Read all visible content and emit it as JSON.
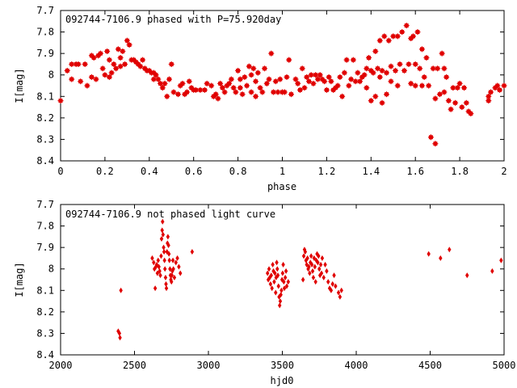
{
  "chart_data": [
    {
      "type": "scatter",
      "title": "092744-7106.9 phased with P=75.920day",
      "xlabel": "phase",
      "ylabel": "I[mag]",
      "xlim": [
        0,
        2
      ],
      "ylim": [
        7.7,
        8.4
      ],
      "y_inverted": true,
      "xticks": [
        "0",
        "0.2",
        "0.4",
        "0.6",
        "0.8",
        "1",
        "1.2",
        "1.4",
        "1.6",
        "1.8",
        "2"
      ],
      "yticks": [
        "7.7",
        "7.8",
        "7.9",
        "8",
        "8.1",
        "8.2",
        "8.3",
        "8.4"
      ],
      "marker": "star",
      "color": "#e00000",
      "points": [
        [
          0.0,
          8.12
        ],
        [
          0.03,
          7.98
        ],
        [
          0.05,
          7.95
        ],
        [
          0.05,
          8.02
        ],
        [
          0.07,
          7.95
        ],
        [
          0.08,
          7.95
        ],
        [
          0.09,
          8.03
        ],
        [
          0.11,
          7.95
        ],
        [
          0.12,
          8.05
        ],
        [
          0.14,
          7.91
        ],
        [
          0.14,
          8.01
        ],
        [
          0.15,
          7.92
        ],
        [
          0.16,
          8.02
        ],
        [
          0.17,
          7.91
        ],
        [
          0.18,
          7.9
        ],
        [
          0.19,
          7.97
        ],
        [
          0.2,
          8.0
        ],
        [
          0.21,
          7.89
        ],
        [
          0.22,
          7.93
        ],
        [
          0.22,
          8.01
        ],
        [
          0.23,
          7.99
        ],
        [
          0.24,
          7.95
        ],
        [
          0.25,
          7.97
        ],
        [
          0.26,
          7.88
        ],
        [
          0.27,
          7.96
        ],
        [
          0.27,
          7.92
        ],
        [
          0.28,
          7.89
        ],
        [
          0.29,
          7.95
        ],
        [
          0.3,
          7.84
        ],
        [
          0.31,
          7.86
        ],
        [
          0.32,
          7.93
        ],
        [
          0.33,
          7.93
        ],
        [
          0.34,
          7.94
        ],
        [
          0.35,
          7.95
        ],
        [
          0.36,
          7.96
        ],
        [
          0.37,
          7.93
        ],
        [
          0.38,
          7.97
        ],
        [
          0.39,
          7.98
        ],
        [
          0.4,
          7.98
        ],
        [
          0.41,
          7.99
        ],
        [
          0.42,
          7.99
        ],
        [
          0.42,
          8.02
        ],
        [
          0.43,
          8.0
        ],
        [
          0.44,
          8.02
        ],
        [
          0.45,
          8.04
        ],
        [
          0.46,
          8.06
        ],
        [
          0.47,
          8.04
        ],
        [
          0.48,
          8.1
        ],
        [
          0.49,
          8.02
        ],
        [
          0.5,
          7.95
        ],
        [
          0.51,
          8.08
        ],
        [
          0.53,
          8.09
        ],
        [
          0.54,
          8.05
        ],
        [
          0.55,
          8.04
        ],
        [
          0.56,
          8.09
        ],
        [
          0.57,
          8.08
        ],
        [
          0.58,
          8.03
        ],
        [
          0.59,
          8.06
        ],
        [
          0.6,
          8.07
        ],
        [
          0.61,
          8.07
        ],
        [
          0.63,
          8.07
        ],
        [
          0.65,
          8.07
        ],
        [
          0.66,
          8.04
        ],
        [
          0.68,
          8.05
        ],
        [
          0.69,
          8.1
        ],
        [
          0.7,
          8.09
        ],
        [
          0.71,
          8.11
        ],
        [
          0.72,
          8.04
        ],
        [
          0.73,
          8.06
        ],
        [
          0.74,
          8.08
        ],
        [
          0.75,
          8.05
        ],
        [
          0.76,
          8.04
        ],
        [
          0.77,
          8.02
        ],
        [
          0.78,
          8.06
        ],
        [
          0.79,
          8.08
        ],
        [
          0.8,
          7.98
        ],
        [
          0.81,
          8.06
        ],
        [
          0.81,
          8.02
        ],
        [
          0.82,
          8.09
        ],
        [
          0.83,
          8.01
        ],
        [
          0.84,
          8.05
        ],
        [
          0.85,
          7.96
        ],
        [
          0.86,
          8.0
        ],
        [
          0.86,
          8.08
        ],
        [
          0.87,
          7.97
        ],
        [
          0.88,
          8.03
        ],
        [
          0.88,
          8.1
        ],
        [
          0.89,
          7.99
        ],
        [
          0.9,
          8.06
        ],
        [
          0.91,
          8.08
        ],
        [
          0.92,
          7.97
        ],
        [
          0.93,
          8.04
        ],
        [
          0.94,
          8.02
        ],
        [
          0.95,
          7.9
        ],
        [
          0.96,
          8.08
        ],
        [
          0.97,
          8.03
        ],
        [
          0.98,
          8.08
        ],
        [
          0.99,
          8.02
        ],
        [
          1.0,
          8.08
        ],
        [
          1.01,
          8.08
        ],
        [
          1.02,
          8.01
        ],
        [
          1.03,
          7.93
        ],
        [
          1.04,
          8.09
        ],
        [
          1.06,
          8.02
        ],
        [
          1.07,
          8.04
        ],
        [
          1.08,
          8.07
        ],
        [
          1.09,
          7.97
        ],
        [
          1.1,
          8.06
        ],
        [
          1.11,
          8.01
        ],
        [
          1.12,
          8.03
        ],
        [
          1.13,
          8.0
        ],
        [
          1.14,
          8.04
        ],
        [
          1.15,
          8.0
        ],
        [
          1.16,
          8.02
        ],
        [
          1.17,
          8.0
        ],
        [
          1.18,
          8.02
        ],
        [
          1.19,
          8.03
        ],
        [
          1.2,
          8.07
        ],
        [
          1.21,
          8.01
        ],
        [
          1.22,
          8.03
        ],
        [
          1.23,
          8.07
        ],
        [
          1.24,
          8.06
        ],
        [
          1.25,
          8.05
        ],
        [
          1.26,
          8.01
        ],
        [
          1.27,
          8.1
        ],
        [
          1.28,
          7.99
        ],
        [
          1.29,
          7.93
        ],
        [
          1.3,
          8.05
        ],
        [
          1.31,
          8.02
        ],
        [
          1.32,
          7.93
        ],
        [
          1.33,
          8.03
        ],
        [
          1.34,
          7.99
        ],
        [
          1.35,
          8.03
        ],
        [
          1.36,
          8.01
        ],
        [
          1.37,
          8.0
        ],
        [
          1.38,
          7.97
        ],
        [
          1.38,
          8.06
        ],
        [
          1.39,
          7.92
        ],
        [
          1.4,
          7.98
        ],
        [
          1.4,
          8.12
        ],
        [
          1.41,
          7.99
        ],
        [
          1.42,
          7.89
        ],
        [
          1.42,
          8.1
        ],
        [
          1.43,
          7.97
        ],
        [
          1.44,
          7.84
        ],
        [
          1.44,
          8.01
        ],
        [
          1.45,
          7.98
        ],
        [
          1.45,
          8.13
        ],
        [
          1.46,
          7.82
        ],
        [
          1.47,
          7.99
        ],
        [
          1.47,
          8.09
        ],
        [
          1.48,
          7.84
        ],
        [
          1.49,
          7.96
        ],
        [
          1.49,
          8.03
        ],
        [
          1.5,
          7.82
        ],
        [
          1.51,
          7.98
        ],
        [
          1.52,
          7.82
        ],
        [
          1.52,
          8.05
        ],
        [
          1.53,
          7.95
        ],
        [
          1.54,
          7.8
        ],
        [
          1.55,
          7.98
        ],
        [
          1.56,
          7.77
        ],
        [
          1.57,
          7.95
        ],
        [
          1.58,
          7.83
        ],
        [
          1.58,
          8.04
        ],
        [
          1.59,
          7.82
        ],
        [
          1.6,
          7.95
        ],
        [
          1.6,
          8.05
        ],
        [
          1.61,
          7.8
        ],
        [
          1.62,
          7.97
        ],
        [
          1.63,
          8.05
        ],
        [
          1.63,
          7.88
        ],
        [
          1.64,
          8.01
        ],
        [
          1.65,
          7.92
        ],
        [
          1.66,
          8.05
        ],
        [
          1.67,
          8.29
        ],
        [
          1.68,
          7.97
        ],
        [
          1.69,
          8.32
        ],
        [
          1.69,
          8.11
        ],
        [
          1.7,
          7.97
        ],
        [
          1.71,
          8.09
        ],
        [
          1.72,
          7.9
        ],
        [
          1.73,
          7.97
        ],
        [
          1.73,
          8.08
        ],
        [
          1.74,
          8.01
        ],
        [
          1.75,
          8.12
        ],
        [
          1.76,
          8.16
        ],
        [
          1.77,
          8.06
        ],
        [
          1.78,
          8.13
        ],
        [
          1.79,
          8.06
        ],
        [
          1.8,
          8.04
        ],
        [
          1.81,
          8.15
        ],
        [
          1.82,
          8.06
        ],
        [
          1.83,
          8.13
        ],
        [
          1.84,
          8.17
        ],
        [
          1.85,
          8.18
        ],
        [
          1.93,
          8.1
        ],
        [
          1.93,
          8.12
        ],
        [
          1.94,
          8.08
        ],
        [
          1.96,
          8.06
        ],
        [
          1.97,
          8.05
        ],
        [
          1.98,
          8.07
        ],
        [
          2.0,
          8.05
        ]
      ]
    },
    {
      "type": "scatter",
      "title": "092744-7106.9 not phased light curve",
      "xlabel": "hjd0",
      "ylabel": "I[mag]",
      "xlim": [
        2000,
        5000
      ],
      "ylim": [
        7.7,
        8.4
      ],
      "y_inverted": true,
      "xticks": [
        "2000",
        "2500",
        "3000",
        "3500",
        "4000",
        "4500",
        "5000"
      ],
      "yticks": [
        "7.7",
        "7.8",
        "7.9",
        "8",
        "8.1",
        "8.2",
        "8.3",
        "8.4"
      ],
      "marker": "diamond",
      "color": "#e00000",
      "points": [
        [
          2390,
          8.29
        ],
        [
          2398,
          8.3
        ],
        [
          2402,
          8.32
        ],
        [
          2408,
          8.1
        ],
        [
          2620,
          7.95
        ],
        [
          2630,
          7.97
        ],
        [
          2635,
          8.0
        ],
        [
          2640,
          8.09
        ],
        [
          2645,
          7.99
        ],
        [
          2650,
          7.98
        ],
        [
          2655,
          8.02
        ],
        [
          2660,
          7.96
        ],
        [
          2665,
          7.99
        ],
        [
          2670,
          8.01
        ],
        [
          2675,
          8.03
        ],
        [
          2680,
          7.94
        ],
        [
          2683,
          7.86
        ],
        [
          2687,
          7.82
        ],
        [
          2690,
          7.78
        ],
        [
          2693,
          7.84
        ],
        [
          2697,
          7.9
        ],
        [
          2700,
          7.92
        ],
        [
          2703,
          7.96
        ],
        [
          2706,
          8.0
        ],
        [
          2710,
          8.04
        ],
        [
          2713,
          8.07
        ],
        [
          2716,
          8.09
        ],
        [
          2720,
          7.92
        ],
        [
          2723,
          7.88
        ],
        [
          2726,
          7.85
        ],
        [
          2730,
          7.89
        ],
        [
          2733,
          7.93
        ],
        [
          2736,
          7.96
        ],
        [
          2740,
          8.0
        ],
        [
          2743,
          8.03
        ],
        [
          2746,
          8.05
        ],
        [
          2750,
          8.06
        ],
        [
          2753,
          8.03
        ],
        [
          2756,
          8.01
        ],
        [
          2760,
          7.96
        ],
        [
          2763,
          8.0
        ],
        [
          2770,
          8.04
        ],
        [
          2780,
          7.97
        ],
        [
          2790,
          7.95
        ],
        [
          2800,
          7.99
        ],
        [
          2810,
          8.02
        ],
        [
          2890,
          7.92
        ],
        [
          3400,
          8.02
        ],
        [
          3405,
          8.05
        ],
        [
          3410,
          8.0
        ],
        [
          3415,
          8.04
        ],
        [
          3420,
          8.07
        ],
        [
          3425,
          8.03
        ],
        [
          3430,
          8.09
        ],
        [
          3435,
          7.98
        ],
        [
          3440,
          8.01
        ],
        [
          3445,
          8.06
        ],
        [
          3450,
          8.02
        ],
        [
          3455,
          8.11
        ],
        [
          3458,
          8.04
        ],
        [
          3462,
          7.97
        ],
        [
          3466,
          8.0
        ],
        [
          3470,
          8.03
        ],
        [
          3474,
          8.08
        ],
        [
          3478,
          8.13
        ],
        [
          3482,
          8.17
        ],
        [
          3486,
          8.15
        ],
        [
          3490,
          8.12
        ],
        [
          3494,
          8.1
        ],
        [
          3498,
          8.05
        ],
        [
          3502,
          8.02
        ],
        [
          3506,
          7.98
        ],
        [
          3510,
          8.06
        ],
        [
          3514,
          8.09
        ],
        [
          3520,
          8.04
        ],
        [
          3525,
          8.01
        ],
        [
          3530,
          8.08
        ],
        [
          3540,
          8.06
        ],
        [
          3640,
          8.05
        ],
        [
          3645,
          7.94
        ],
        [
          3650,
          7.91
        ],
        [
          3655,
          7.92
        ],
        [
          3660,
          7.96
        ],
        [
          3665,
          7.98
        ],
        [
          3670,
          7.95
        ],
        [
          3675,
          8.0
        ],
        [
          3680,
          7.99
        ],
        [
          3685,
          8.02
        ],
        [
          3690,
          7.97
        ],
        [
          3695,
          7.94
        ],
        [
          3700,
          7.98
        ],
        [
          3705,
          8.01
        ],
        [
          3710,
          8.04
        ],
        [
          3715,
          7.95
        ],
        [
          3720,
          7.99
        ],
        [
          3725,
          8.06
        ],
        [
          3730,
          7.96
        ],
        [
          3735,
          7.93
        ],
        [
          3740,
          7.97
        ],
        [
          3745,
          7.94
        ],
        [
          3750,
          8.0
        ],
        [
          3755,
          8.03
        ],
        [
          3760,
          7.98
        ],
        [
          3765,
          8.02
        ],
        [
          3770,
          7.95
        ],
        [
          3780,
          8.04
        ],
        [
          3790,
          7.98
        ],
        [
          3800,
          8.01
        ],
        [
          3810,
          8.06
        ],
        [
          3820,
          8.09
        ],
        [
          3830,
          8.1
        ],
        [
          3840,
          8.07
        ],
        [
          3850,
          8.03
        ],
        [
          3860,
          8.08
        ],
        [
          3880,
          8.11
        ],
        [
          3890,
          8.13
        ],
        [
          3900,
          8.1
        ],
        [
          4490,
          7.93
        ],
        [
          4570,
          7.95
        ],
        [
          4630,
          7.91
        ],
        [
          4750,
          8.03
        ],
        [
          4920,
          8.01
        ],
        [
          4980,
          7.96
        ]
      ]
    }
  ]
}
